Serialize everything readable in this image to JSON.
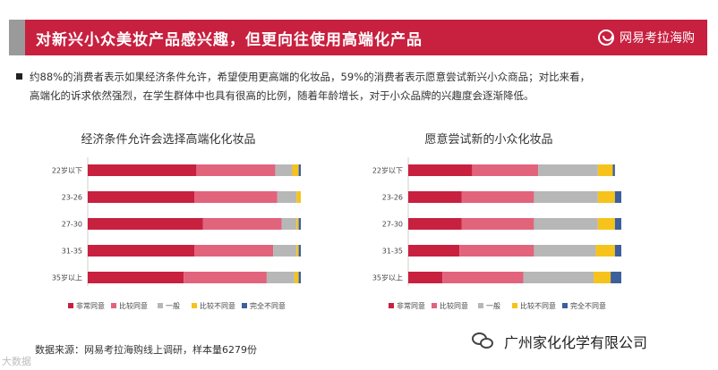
{
  "header": {
    "title": "对新兴小众美妆产品感兴趣，但更向往使用高端化产品",
    "brand": "网易考拉海购"
  },
  "bullet": {
    "line1": "约88%的消费者表示如果经济条件允许，希望使用更高端的化妆品，59%的消费者表示愿意尝试新兴小众商品；对比来看，",
    "line2": "高端化的诉求依然强烈，在学生群体中也具有很高的比例，随着年龄增长，对于小众品牌的兴趣度会逐渐降低。"
  },
  "footer": {
    "source": "数据来源：网易考拉海购线上调研，样本量6279份",
    "watermark_left": "大数据",
    "watermark_right": "广州家化化学有限公司"
  },
  "colors": {
    "series": [
      "#c8203f",
      "#e2637c",
      "#b7b7b7",
      "#f5c31c",
      "#3d5f9b"
    ]
  },
  "chart_data": [
    {
      "type": "bar",
      "orientation": "horizontal",
      "stacked": true,
      "title": "经济条件允许会选择高端化化妆品",
      "categories": [
        "22岁以下",
        "23-26",
        "27-30",
        "31-35",
        "35岁以上"
      ],
      "xlim": [
        0,
        100
      ],
      "legend_position": "bottom",
      "series": [
        {
          "name": "非常同意",
          "values": [
            51,
            50,
            54,
            50,
            45
          ]
        },
        {
          "name": "比较同意",
          "values": [
            37,
            39,
            37,
            37,
            39
          ]
        },
        {
          "name": "一般",
          "values": [
            8,
            9,
            7,
            11,
            13
          ]
        },
        {
          "name": "比较不同意",
          "values": [
            3,
            2,
            1,
            1,
            2
          ]
        },
        {
          "name": "完全不同意",
          "values": [
            1,
            0,
            1,
            1,
            1
          ]
        }
      ]
    },
    {
      "type": "bar",
      "orientation": "horizontal",
      "stacked": true,
      "title": "愿意尝试新的小众化妆品",
      "categories": [
        "22岁以下",
        "23-26",
        "27-30",
        "31-35",
        "35岁以上"
      ],
      "xlim": [
        0,
        100
      ],
      "legend_position": "bottom",
      "series": [
        {
          "name": "非常同意",
          "values": [
            30,
            25,
            25,
            24,
            16
          ]
        },
        {
          "name": "比较同意",
          "values": [
            31,
            34,
            34,
            35,
            38
          ]
        },
        {
          "name": "一般",
          "values": [
            28,
            30,
            30,
            29,
            33
          ]
        },
        {
          "name": "比较不同意",
          "values": [
            7,
            8,
            8,
            9,
            8
          ]
        },
        {
          "name": "完全不同意",
          "values": [
            1,
            3,
            3,
            3,
            5
          ]
        }
      ]
    }
  ]
}
